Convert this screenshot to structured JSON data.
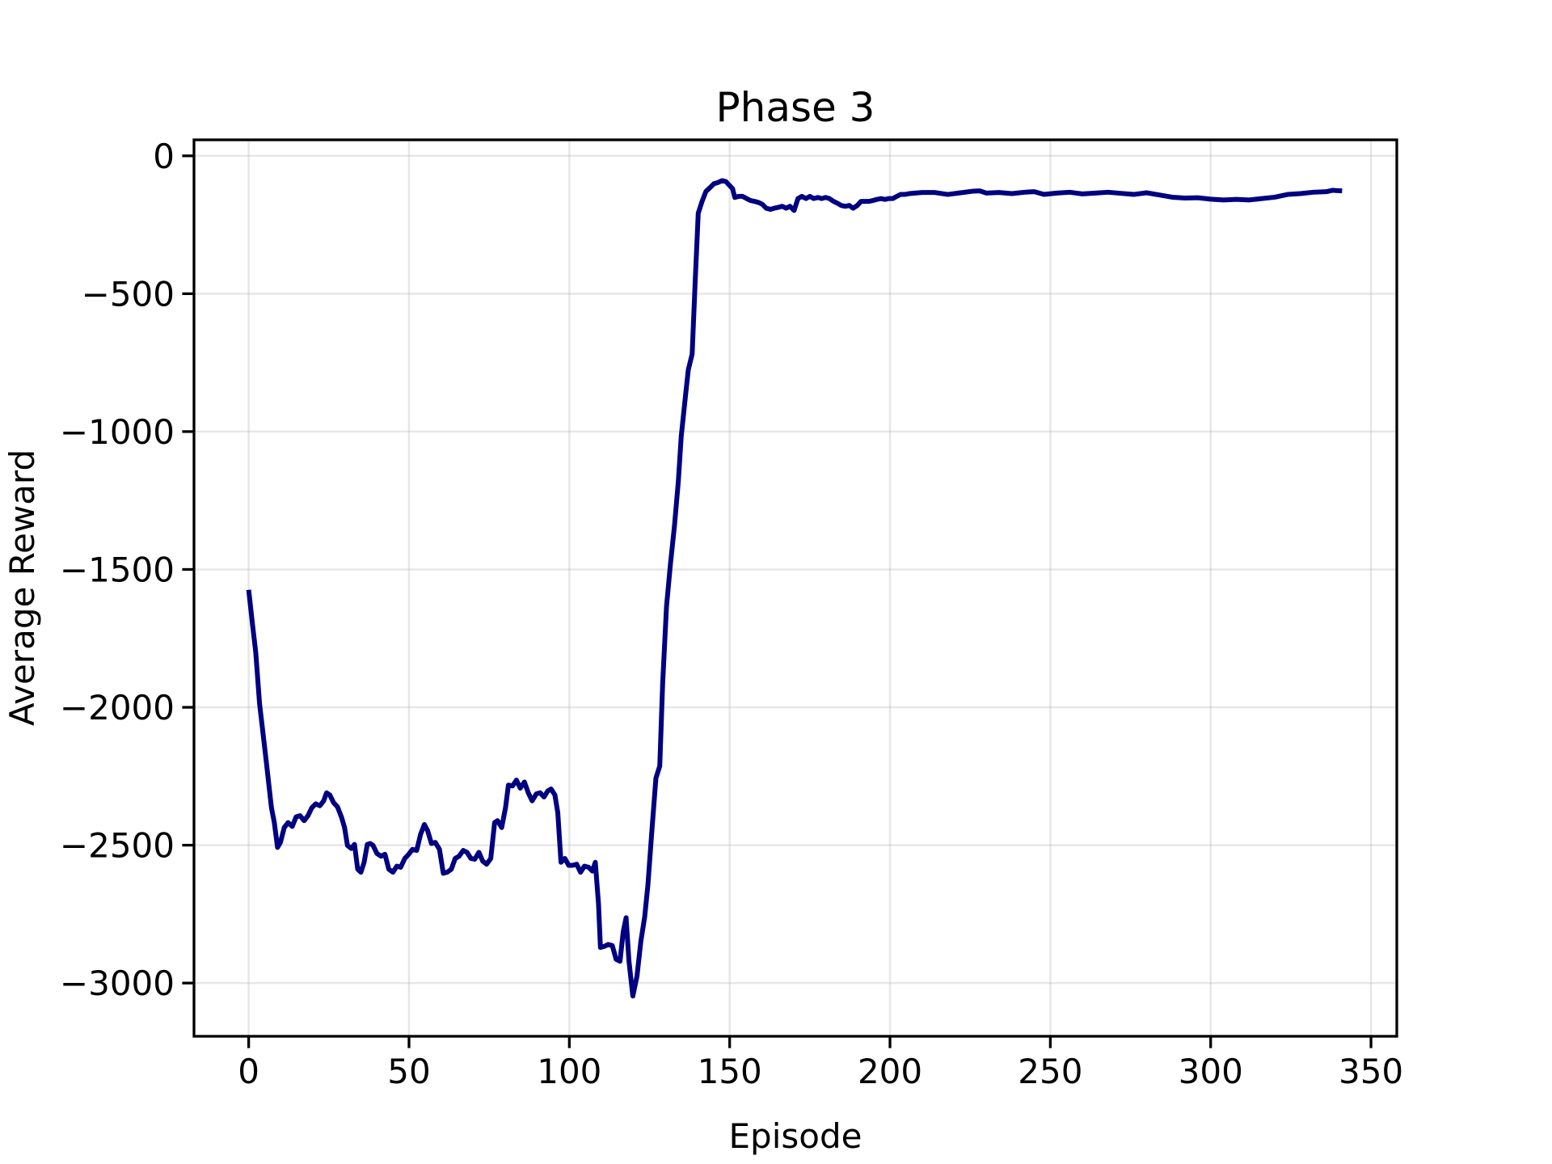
{
  "chart_data": {
    "type": "line",
    "title": "Phase 3",
    "x_label": "Episode",
    "y_label": "Average Reward",
    "xlim": [
      -17.05,
      358.05
    ],
    "ylim": [
      -3193,
      58
    ],
    "xticks": [
      0,
      50,
      100,
      150,
      200,
      250,
      300,
      350
    ],
    "yticks": [
      0,
      {
        "value": -500,
        "label": "−500"
      },
      {
        "value": -1000,
        "label": "−1000"
      },
      {
        "value": -1500,
        "label": "−1500"
      },
      {
        "value": -2000,
        "label": "−2000"
      },
      {
        "value": -2500,
        "label": "−2500"
      },
      {
        "value": -3000,
        "label": "−3000"
      }
    ],
    "grid": true,
    "series": [
      {
        "color": "#000080",
        "x": [
          0,
          1.2,
          2.2,
          3.4,
          5.2,
          7.1,
          8,
          9,
          9.9,
          11.1,
          12.3,
          13.6,
          14.8,
          16,
          17.3,
          18.5,
          19.7,
          20.9,
          22.2,
          23.4,
          24.3,
          25.3,
          26.5,
          27.7,
          29,
          29.9,
          30.8,
          32,
          33,
          34,
          35,
          36,
          37,
          37.9,
          38.8,
          40,
          41.3,
          42.5,
          43.7,
          45,
          46.2,
          47.4,
          48.7,
          49.9,
          51.1,
          52.4,
          53.6,
          54.8,
          55.8,
          57,
          58.2,
          59.5,
          60.7,
          61.9,
          63.2,
          64.4,
          65.6,
          66.9,
          68.1,
          69.3,
          70.5,
          71.8,
          73,
          74.2,
          75.5,
          76.7,
          77.6,
          78.9,
          80.1,
          81,
          82.3,
          83.5,
          84.7,
          86,
          87.2,
          88.4,
          89.7,
          90.9,
          92.1,
          93.3,
          94.3,
          95.5,
          96.4,
          97.4,
          98.6,
          99.8,
          101,
          102.3,
          103.5,
          104.7,
          106,
          107.2,
          108.1,
          109.1,
          109.7,
          110.9,
          112.1,
          113.4,
          114.6,
          115.8,
          116.8,
          117.7,
          118.6,
          119.8,
          121.1,
          122.3,
          123.5,
          124.5,
          125.7,
          127,
          128.2,
          129.1,
          130.3,
          131.5,
          132.8,
          134,
          134.9,
          136.2,
          137.1,
          138.3,
          139.3,
          140.2,
          141.4,
          142.6,
          143.9,
          145.1,
          146.3,
          147.6,
          148.8,
          150,
          150.9,
          151.6,
          152.8,
          154,
          155.3,
          156.5,
          157.7,
          159,
          160.2,
          161.4,
          162.7,
          163.9,
          165.1,
          166.4,
          167.6,
          168.8,
          170.1,
          171.3,
          172.5,
          173.8,
          175,
          176.2,
          177.5,
          178.7,
          179.9,
          181.1,
          182.4,
          183.6,
          184.8,
          186.1,
          187.3,
          188.5,
          189.8,
          191,
          192.2,
          193.5,
          194.7,
          195.9,
          197.2,
          198.4,
          199.6,
          200.9,
          202.1,
          203.3,
          204.6,
          206,
          210,
          214,
          218,
          222,
          226,
          228,
          230,
          234,
          238,
          242,
          245,
          248,
          252,
          256,
          260,
          264,
          268,
          272,
          276,
          280,
          284,
          288,
          292,
          296,
          300,
          304,
          308,
          312,
          316,
          320,
          324,
          328,
          332,
          336,
          338,
          341
        ],
        "values": [
          -1574,
          -1700,
          -1800,
          -1987,
          -2167,
          -2364,
          -2418,
          -2508,
          -2490,
          -2436,
          -2418,
          -2432,
          -2397,
          -2393,
          -2411,
          -2393,
          -2364,
          -2350,
          -2357,
          -2339,
          -2310,
          -2318,
          -2346,
          -2361,
          -2400,
          -2436,
          -2501,
          -2512,
          -2497,
          -2587,
          -2598,
          -2562,
          -2497,
          -2494,
          -2501,
          -2530,
          -2540,
          -2533,
          -2587,
          -2598,
          -2576,
          -2580,
          -2548,
          -2533,
          -2515,
          -2519,
          -2461,
          -2425,
          -2447,
          -2494,
          -2490,
          -2515,
          -2602,
          -2598,
          -2587,
          -2548,
          -2540,
          -2519,
          -2526,
          -2548,
          -2551,
          -2526,
          -2558,
          -2569,
          -2548,
          -2418,
          -2411,
          -2436,
          -2364,
          -2282,
          -2285,
          -2264,
          -2293,
          -2271,
          -2310,
          -2339,
          -2314,
          -2310,
          -2325,
          -2303,
          -2296,
          -2318,
          -2382,
          -2562,
          -2548,
          -2573,
          -2573,
          -2569,
          -2598,
          -2576,
          -2580,
          -2594,
          -2562,
          -2713,
          -2871,
          -2867,
          -2860,
          -2864,
          -2914,
          -2921,
          -2814,
          -2763,
          -2921,
          -3047,
          -2975,
          -2849,
          -2760,
          -2645,
          -2454,
          -2257,
          -2213,
          -1915,
          -1635,
          -1484,
          -1340,
          -1179,
          -1017,
          -873,
          -776,
          -719,
          -442,
          -208,
          -165,
          -129,
          -115,
          -101,
          -97,
          -90,
          -93,
          -108,
          -119,
          -151,
          -147,
          -147,
          -155,
          -162,
          -165,
          -169,
          -176,
          -190,
          -194,
          -190,
          -187,
          -183,
          -190,
          -183,
          -198,
          -155,
          -147,
          -155,
          -147,
          -155,
          -151,
          -155,
          -151,
          -155,
          -165,
          -172,
          -180,
          -183,
          -180,
          -190,
          -180,
          -165,
          -165,
          -165,
          -162,
          -158,
          -155,
          -158,
          -155,
          -155,
          -147,
          -140,
          -140,
          -137,
          -133,
          -133,
          -140,
          -134,
          -128,
          -127,
          -135,
          -133,
          -137,
          -132,
          -130,
          -140,
          -135,
          -132,
          -138,
          -135,
          -132,
          -136,
          -140,
          -134,
          -142,
          -150,
          -153,
          -152,
          -157,
          -160,
          -158,
          -160,
          -155,
          -150,
          -140,
          -137,
          -132,
          -130,
          -125,
          -127
        ]
      }
    ]
  }
}
